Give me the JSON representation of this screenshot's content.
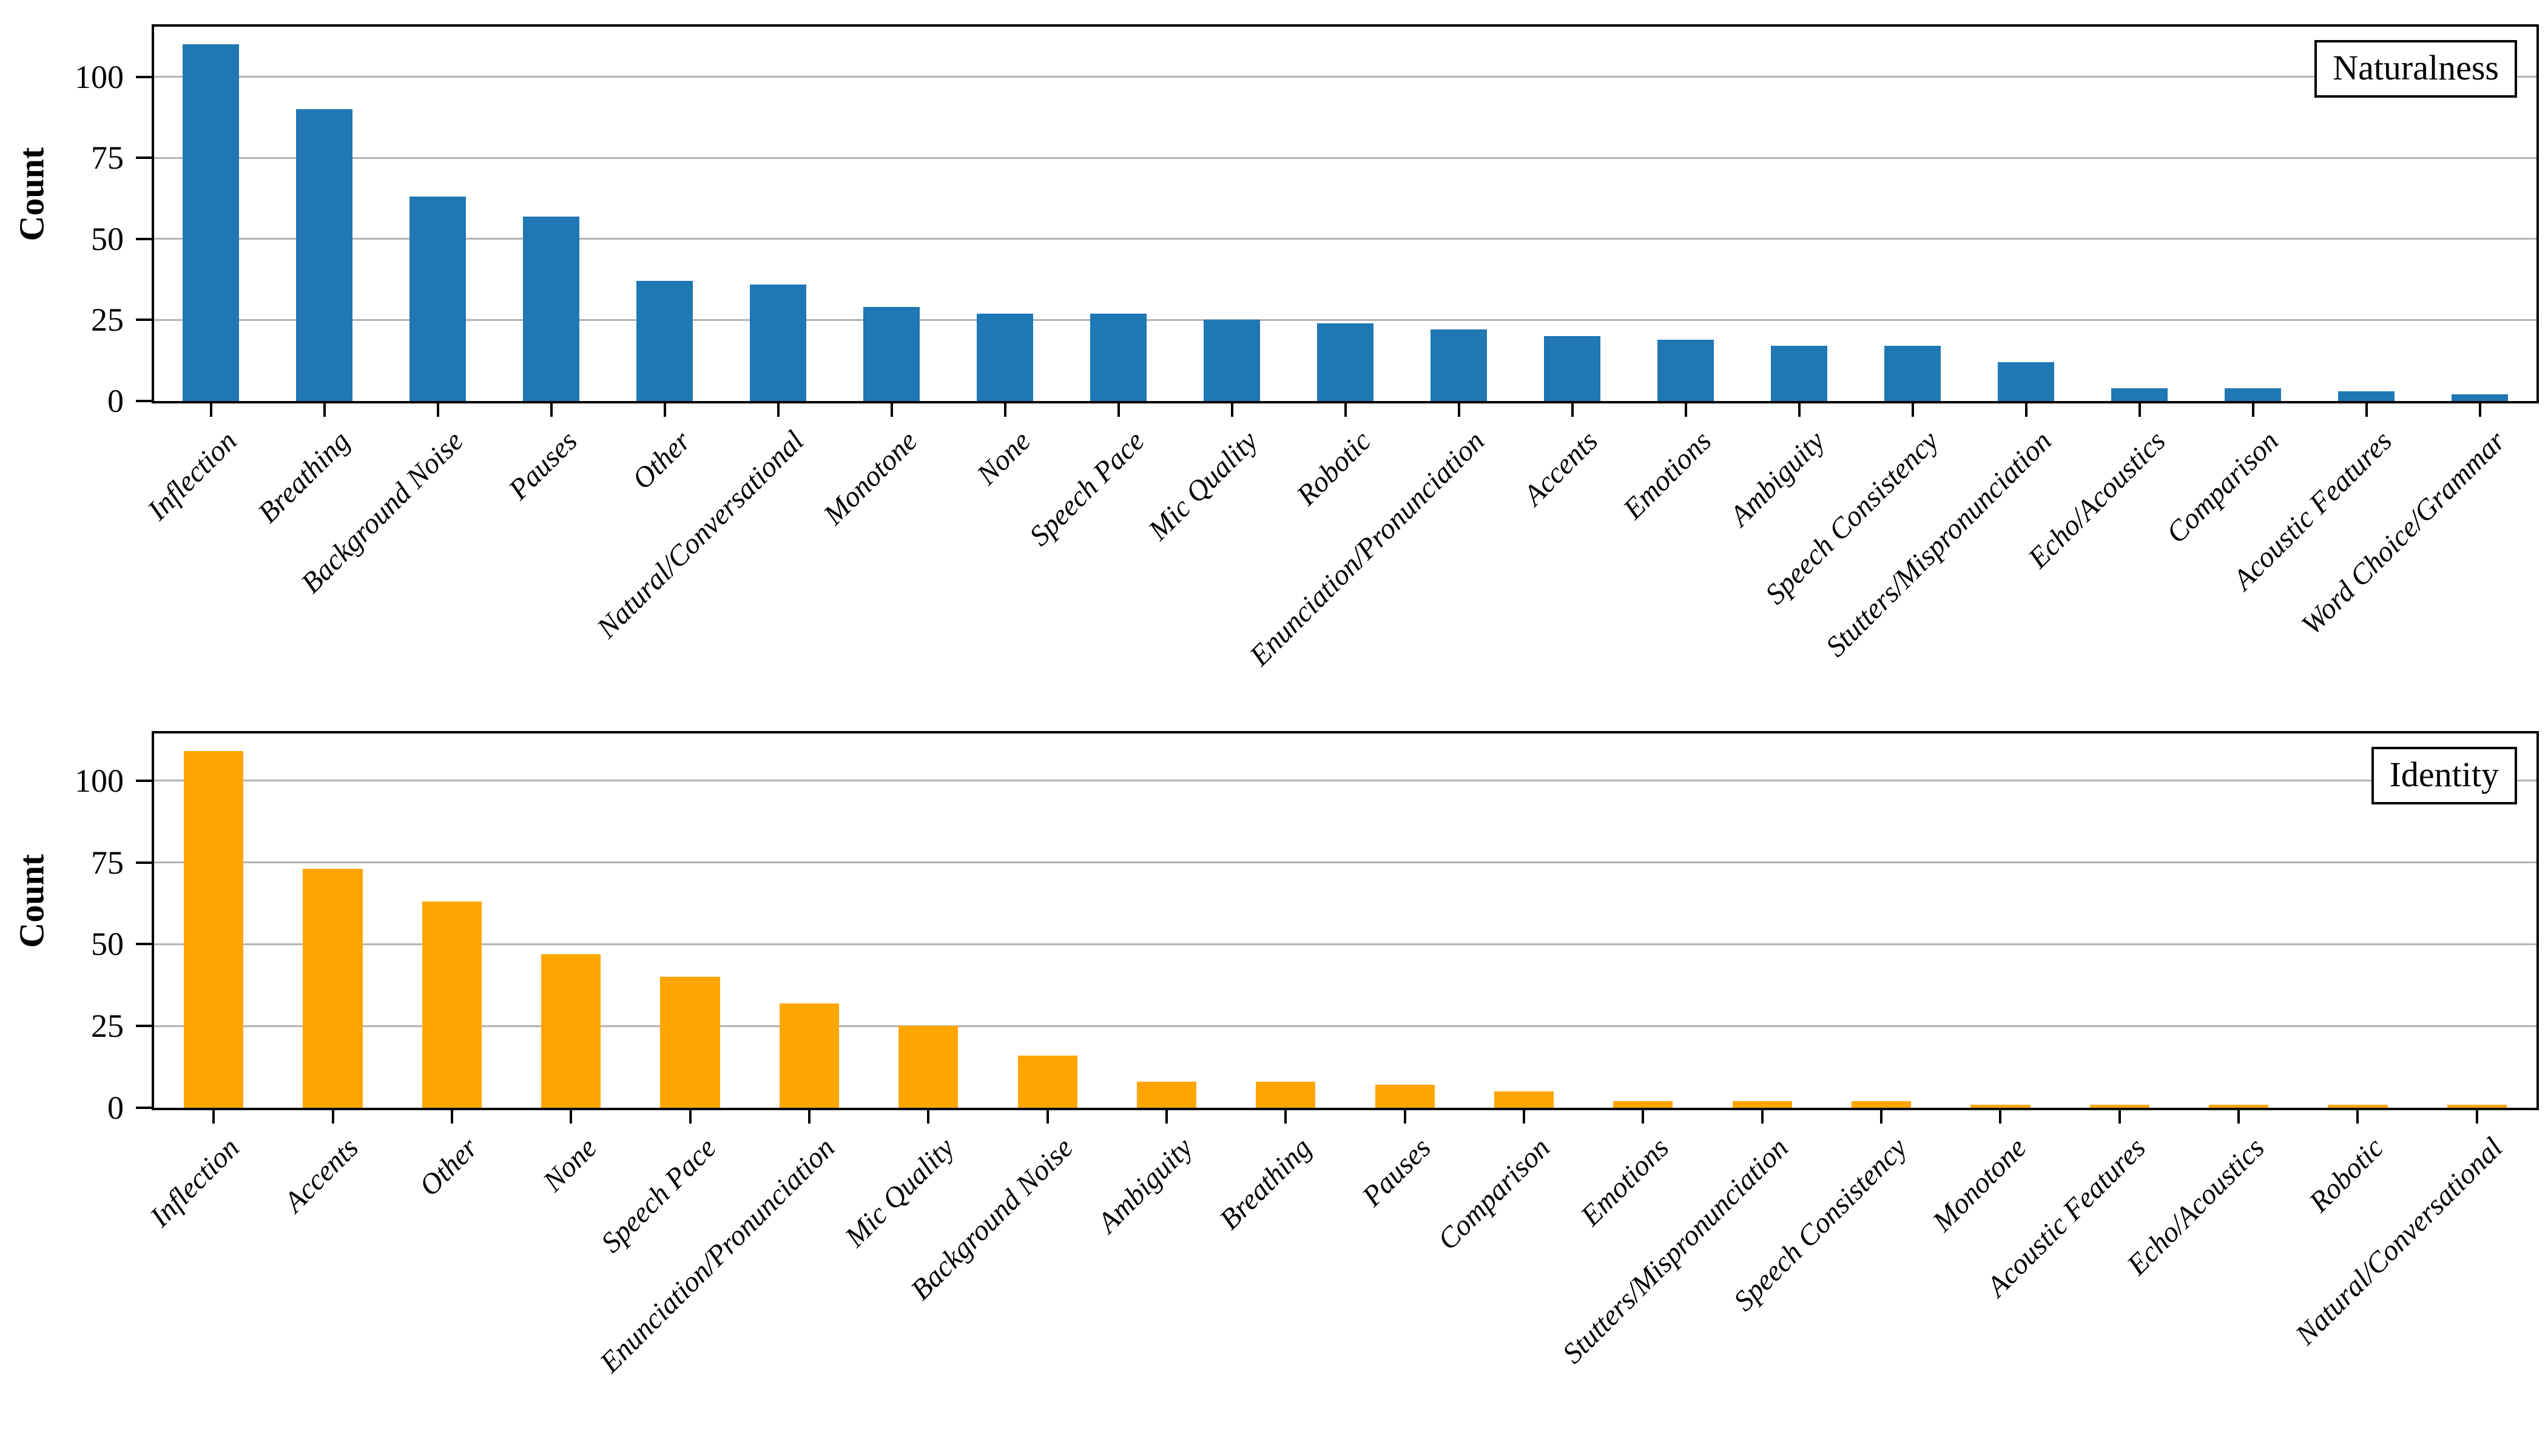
{
  "figure": {
    "background": "#ffffff",
    "gridline_color": "#b3b3b3",
    "spine_color": "#000000"
  },
  "chart_data": [
    {
      "type": "bar",
      "title": "Naturalness",
      "xlabel": "",
      "ylabel": "Count",
      "bar_color": "#1f77b4",
      "grid": "horizontal",
      "legend_position": "upper-right-box",
      "yticks": [
        0,
        25,
        50,
        75,
        100
      ],
      "ylim": [
        0,
        115.5
      ],
      "categories": [
        "Inflection",
        "Breathing",
        "Background Noise",
        "Pauses",
        "Other",
        "Natural/Conversational",
        "Monotone",
        "None",
        "Speech Pace",
        "Mic Quality",
        "Robotic",
        "Enunciation/Pronunciation",
        "Accents",
        "Emotions",
        "Ambiguity",
        "Speech Consistency",
        "Stutters/Mispronunciation",
        "Echo/Acoustics",
        "Comparison",
        "Acoustic Features",
        "Word Choice/Grammar"
      ],
      "values": [
        110,
        90,
        63,
        57,
        37,
        36,
        29,
        27,
        27,
        25,
        24,
        22,
        20,
        19,
        17,
        17,
        12,
        4,
        4,
        3,
        2
      ]
    },
    {
      "type": "bar",
      "title": "Identity",
      "xlabel": "",
      "ylabel": "Count",
      "bar_color": "#ffa500",
      "grid": "horizontal",
      "legend_position": "upper-right-box",
      "yticks": [
        0,
        25,
        50,
        75,
        100
      ],
      "ylim": [
        0,
        114.45
      ],
      "categories": [
        "Inflection",
        "Accents",
        "Other",
        "None",
        "Speech Pace",
        "Enunciation/Pronunciation",
        "Mic Quality",
        "Background Noise",
        "Ambiguity",
        "Breathing",
        "Pauses",
        "Comparison",
        "Emotions",
        "Stutters/Mispronunciation",
        "Speech Consistency",
        "Monotone",
        "Acoustic Features",
        "Echo/Acoustics",
        "Robotic",
        "Natural/Conversational"
      ],
      "values": [
        109,
        73,
        63,
        47,
        40,
        32,
        25,
        16,
        8,
        8,
        7,
        5,
        2,
        2,
        2,
        1,
        1,
        1,
        1,
        1
      ]
    }
  ]
}
